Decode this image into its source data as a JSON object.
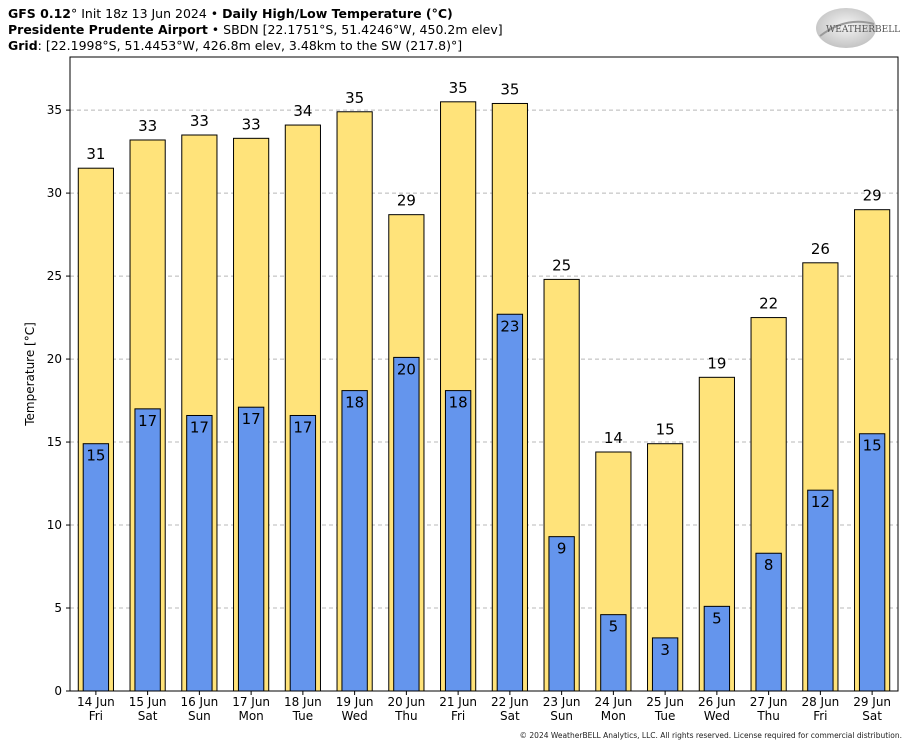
{
  "header": {
    "model": "GFS 0.12",
    "init": "° Init 18z 13 Jun 2024",
    "sep": " • ",
    "product": "Daily High/Low Temperature (°C)",
    "station_name": "Presidente Prudente Airport",
    "station_info": " • SBDN [22.1751°S, 51.4246°W, 450.2m elev]",
    "grid_label": "Grid",
    "grid_info": ": [22.1998°S, 51.4453°W, 426.8m elev, 3.48km to the SW (217.8)°]"
  },
  "logo": {
    "text": "WEATHERBELL"
  },
  "copyright": "© 2024 WeatherBELL Analytics, LLC. All rights reserved. License required for commercial distribution.",
  "chart_data": {
    "type": "bar",
    "ylabel": "Temperature [°C]",
    "ylim": [
      0,
      38.2
    ],
    "yticks": [
      0,
      5,
      10,
      15,
      20,
      25,
      30,
      35
    ],
    "grid": true,
    "categories": [
      "14 Jun",
      "15 Jun",
      "16 Jun",
      "17 Jun",
      "18 Jun",
      "19 Jun",
      "20 Jun",
      "21 Jun",
      "22 Jun",
      "23 Jun",
      "24 Jun",
      "25 Jun",
      "26 Jun",
      "27 Jun",
      "28 Jun",
      "29 Jun"
    ],
    "weekdays": [
      "Fri",
      "Sat",
      "Sun",
      "Mon",
      "Tue",
      "Wed",
      "Thu",
      "Fri",
      "Sat",
      "Sun",
      "Mon",
      "Tue",
      "Wed",
      "Thu",
      "Fri",
      "Sat"
    ],
    "series": [
      {
        "key": "high",
        "color": "#ffe37a",
        "values": [
          31.5,
          33.2,
          33.5,
          33.3,
          34.1,
          34.9,
          28.7,
          35.5,
          35.4,
          24.8,
          14.4,
          14.9,
          18.9,
          22.5,
          25.8,
          29.0
        ],
        "labels": [
          "31",
          "33",
          "33",
          "33",
          "34",
          "35",
          "29",
          "35",
          "35",
          "25",
          "14",
          "15",
          "19",
          "22",
          "26",
          "29"
        ]
      },
      {
        "key": "low",
        "color": "#6495ed",
        "values": [
          14.9,
          17.0,
          16.6,
          17.1,
          16.6,
          18.1,
          20.1,
          18.1,
          22.7,
          9.3,
          4.6,
          3.2,
          5.1,
          8.3,
          12.1,
          15.5
        ],
        "labels": [
          "15",
          "17",
          "17",
          "17",
          "17",
          "18",
          "20",
          "18",
          "23",
          "9",
          "5",
          "3",
          "5",
          "8",
          "12",
          "15"
        ]
      }
    ]
  }
}
